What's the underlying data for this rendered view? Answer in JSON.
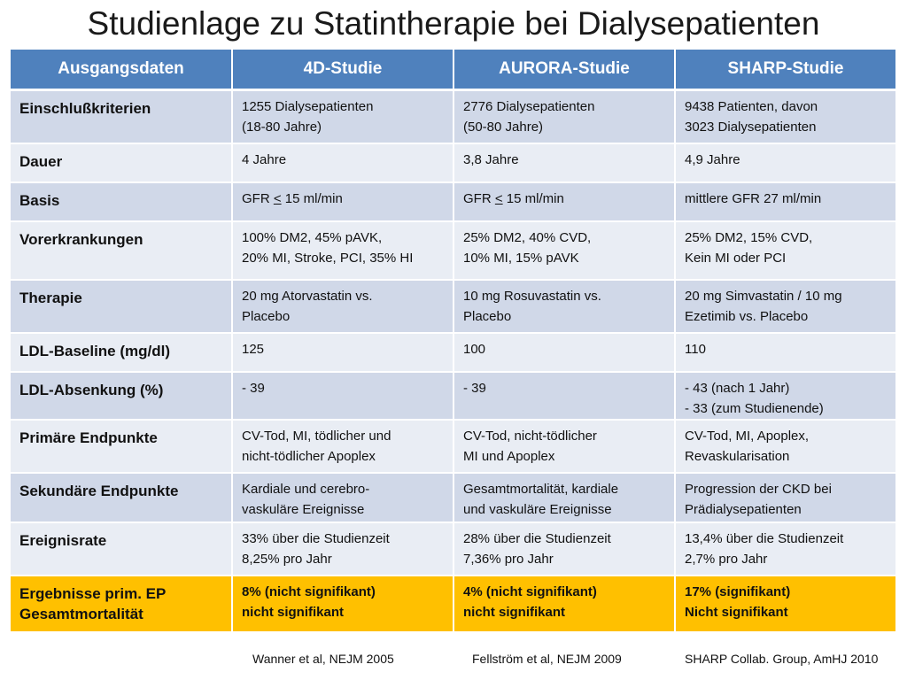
{
  "title": "Studienlage zu Statintherapie bei Dialysepatienten",
  "table": {
    "headers": [
      "Ausgangsdaten",
      "4D-Studie",
      "AURORA-Studie",
      "SHARP-Studie"
    ],
    "rows": [
      {
        "label": "Einschlußkriterien",
        "cells": [
          [
            "1255 Dialysepatienten",
            "(18-80 Jahre)"
          ],
          [
            "2776 Dialysepatienten",
            "(50-80 Jahre)"
          ],
          [
            "9438 Patienten, davon",
            "3023 Dialysepatienten"
          ]
        ]
      },
      {
        "label": "Dauer",
        "cells": [
          [
            "4 Jahre"
          ],
          [
            "3,8 Jahre"
          ],
          [
            "4,9 Jahre"
          ]
        ]
      },
      {
        "label": "Basis",
        "cells": [
          {
            "pre": "GFR ",
            "ul": "<",
            "post": " 15 ml/min"
          },
          {
            "pre": "GFR ",
            "ul": "<",
            "post": " 15 ml/min"
          },
          [
            "mittlere GFR 27 ml/min"
          ]
        ]
      },
      {
        "label": "Vorerkrankungen",
        "cells": [
          [
            "100% DM2, 45% pAVK,",
            "20% MI, Stroke, PCI, 35% HI"
          ],
          [
            "25% DM2, 40% CVD,",
            "10% MI, 15% pAVK"
          ],
          [
            "25% DM2, 15% CVD,",
            "Kein MI oder PCI"
          ]
        ]
      },
      {
        "label": "Therapie",
        "cells": [
          [
            "20 mg Atorvastatin vs.",
            "Placebo"
          ],
          [
            "10 mg Rosuvastatin vs.",
            "Placebo"
          ],
          [
            "20 mg Simvastatin / 10 mg",
            "Ezetimib vs. Placebo"
          ]
        ]
      },
      {
        "label": "LDL-Baseline (mg/dl)",
        "cells": [
          [
            "125"
          ],
          [
            "100"
          ],
          [
            "110"
          ]
        ]
      },
      {
        "label": "LDL-Absenkung (%)",
        "cells": [
          [
            "- 39"
          ],
          [
            "- 39"
          ],
          [
            "- 43 (nach 1 Jahr)",
            "- 33 (zum Studienende)"
          ]
        ]
      },
      {
        "label": "Primäre Endpunkte",
        "cells": [
          [
            "CV-Tod, MI, tödlicher und",
            "nicht-tödlicher Apoplex"
          ],
          [
            "CV-Tod, nicht-tödlicher",
            "MI und Apoplex"
          ],
          [
            "CV-Tod, MI, Apoplex,",
            "Revaskularisation"
          ]
        ]
      },
      {
        "label": "Sekundäre Endpunkte",
        "cells": [
          [
            "Kardiale und cerebro-",
            "vaskuläre Ereignisse"
          ],
          [
            "Gesamtmortalität, kardiale",
            "und vaskuläre Ereignisse"
          ],
          [
            "Progression der CKD bei",
            "Prädialysepatienten"
          ]
        ]
      },
      {
        "label": "Ereignisrate",
        "cells": [
          [
            "33% über die Studienzeit",
            "8,25% pro Jahr"
          ],
          [
            "28% über die Studienzeit",
            "7,36% pro Jahr"
          ],
          [
            "13,4% über die Studienzeit",
            "2,7% pro Jahr"
          ]
        ]
      }
    ],
    "result_row": {
      "label": [
        "Ergebnisse prim. EP",
        "Gesamtmortalität"
      ],
      "cells": [
        [
          "8% (nicht signifikant)",
          "nicht signifikant"
        ],
        [
          "4% (nicht signifikant)",
          "nicht signifikant"
        ],
        [
          "17% (signifikant)",
          "Nicht signifikant"
        ]
      ]
    }
  },
  "references": [
    "Wanner et al, NEJM 2005",
    "Fellström et al, NEJM 2009",
    "SHARP Collab. Group,  AmHJ 2010"
  ]
}
